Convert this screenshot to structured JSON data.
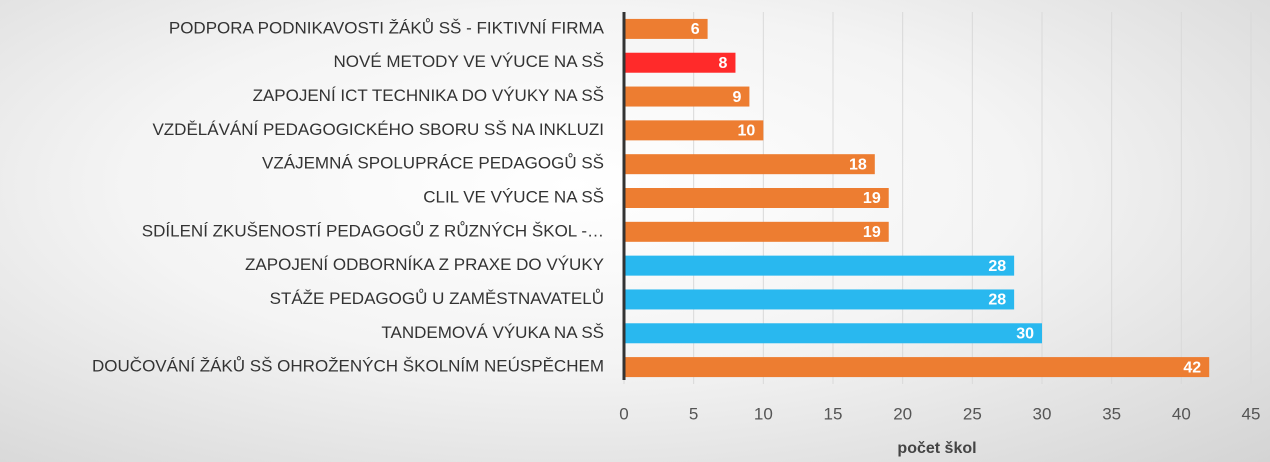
{
  "chart_data": {
    "type": "hbar",
    "categories": [
      "PODPORA PODNIKAVOSTI ŽÁKŮ SŠ  - FIKTIVNÍ FIRMA",
      "NOVÉ METODY VE VÝUCE NA SŠ",
      "ZAPOJENÍ ICT TECHNIKA DO VÝUKY NA SŠ",
      "VZDĚLÁVÁNÍ PEDAGOGICKÉHO SBORU SŠ NA INKLUZI",
      "VZÁJEMNÁ SPOLUPRÁCE PEDAGOGŮ SŠ",
      "CLIL VE VÝUCE NA SŠ",
      "SDÍLENÍ ZKUŠENOSTÍ PEDAGOGŮ Z RŮZNÝCH ŠKOL -…",
      "ZAPOJENÍ ODBORNÍKA Z PRAXE DO VÝUKY",
      "STÁŽE PEDAGOGŮ U ZAMĚSTNAVATELŮ",
      "TANDEMOVÁ VÝUKA NA SŠ",
      "DOUČOVÁNÍ ŽÁKŮ SŠ OHROŽENÝCH ŠKOLNÍM NEÚSPĚCHEM"
    ],
    "values": [
      6,
      8,
      9,
      10,
      18,
      19,
      19,
      28,
      28,
      30,
      42
    ],
    "colors": [
      "#ed7d31",
      "#ff2a2a",
      "#ed7d31",
      "#ed7d31",
      "#ed7d31",
      "#ed7d31",
      "#ed7d31",
      "#29b8ef",
      "#29b8ef",
      "#29b8ef",
      "#ed7d31"
    ],
    "x_label": "počet škol",
    "xlim": [
      0,
      45
    ],
    "xticks": [
      0,
      5,
      10,
      15,
      20,
      25,
      30,
      35,
      40,
      45
    ],
    "grid": true
  }
}
